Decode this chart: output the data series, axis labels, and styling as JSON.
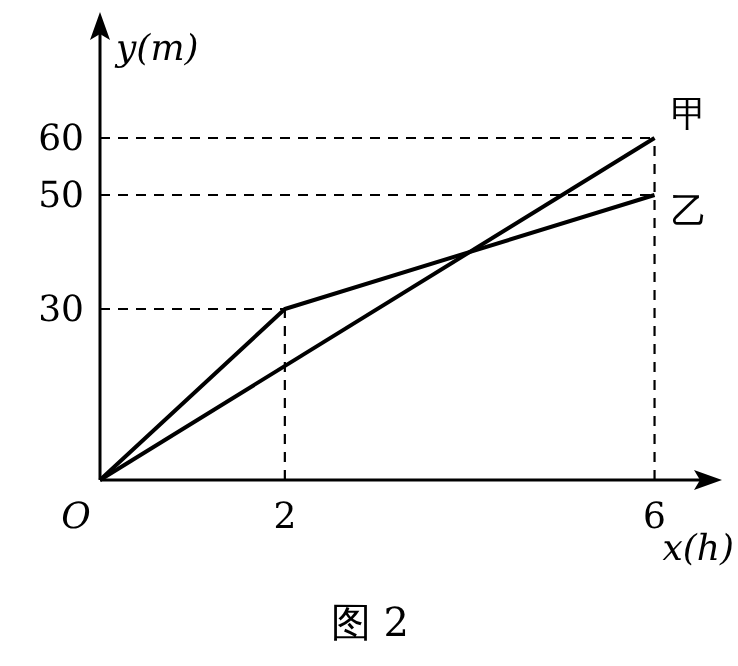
{
  "chart_data": {
    "type": "line",
    "xlabel": "x(h)",
    "ylabel": "y(m)",
    "xlim": [
      0,
      6.6
    ],
    "ylim": [
      0,
      80
    ],
    "xticks": [
      2,
      6
    ],
    "yticks": [
      30,
      50,
      60
    ],
    "series": [
      {
        "name": "甲",
        "color": "#000000",
        "x": [
          0,
          6
        ],
        "values": [
          0,
          60
        ]
      },
      {
        "name": "乙",
        "color": "#000000",
        "x": [
          0,
          2,
          6
        ],
        "values": [
          0,
          30,
          50
        ]
      }
    ],
    "ref_lines": [
      {
        "axis": "y",
        "value": 60,
        "line_style": "dashed"
      },
      {
        "axis": "y",
        "value": 50,
        "line_style": "dashed"
      },
      {
        "axis": "y",
        "value": 30,
        "line_style": "dashed"
      },
      {
        "axis": "x",
        "value": 2,
        "line_style": "dashed"
      },
      {
        "axis": "x",
        "value": 6,
        "line_style": "dashed"
      }
    ],
    "annotations": [
      {
        "text": "O",
        "x": 0,
        "y": 0
      },
      "图 2"
    ],
    "legend": false,
    "marker": "none",
    "line_style": "solid"
  }
}
